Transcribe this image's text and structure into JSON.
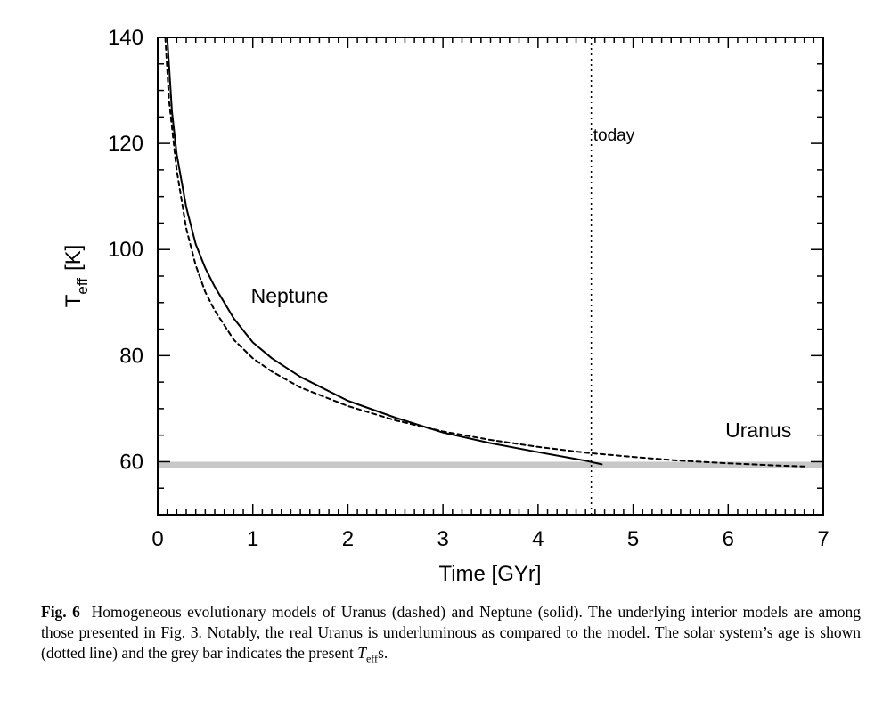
{
  "chart_data": {
    "type": "line",
    "xlabel": "Time  [GYr]",
    "ylabel_main": "T",
    "ylabel_sub": "eff",
    "ylabel_unit": "[K]",
    "xlim": [
      0,
      7
    ],
    "ylim": [
      50,
      140
    ],
    "x_ticks": [
      0,
      1,
      2,
      3,
      4,
      5,
      6,
      7
    ],
    "y_ticks": [
      60,
      80,
      100,
      120,
      140
    ],
    "x_tick_labels": [
      "0",
      "1",
      "2",
      "3",
      "4",
      "5",
      "6",
      "7"
    ],
    "y_tick_labels": [
      "60",
      "80",
      "100",
      "120",
      "140"
    ],
    "grid": false,
    "series": [
      {
        "name": "Neptune",
        "style": "solid",
        "x": [
          0.1,
          0.15,
          0.2,
          0.3,
          0.4,
          0.5,
          0.6,
          0.8,
          1.0,
          1.2,
          1.5,
          2.0,
          2.5,
          3.0,
          3.5,
          4.0,
          4.5,
          4.67
        ],
        "y": [
          140,
          126,
          118,
          108,
          101,
          96.5,
          93,
          87,
          82.5,
          79.5,
          76,
          71.5,
          68.3,
          65.5,
          63.5,
          61.8,
          60.2,
          59.5
        ]
      },
      {
        "name": "Uranus",
        "style": "dashed",
        "x": [
          0.08,
          0.12,
          0.2,
          0.3,
          0.4,
          0.5,
          0.6,
          0.8,
          1.0,
          1.2,
          1.5,
          2.0,
          2.5,
          3.0,
          3.5,
          4.0,
          4.5,
          5.0,
          5.5,
          6.0,
          6.5,
          6.8
        ],
        "y": [
          140,
          128,
          115,
          104,
          97,
          92,
          88.5,
          83,
          79.5,
          77,
          74,
          70.5,
          67.8,
          65.7,
          64.1,
          62.8,
          61.7,
          60.9,
          60.2,
          59.7,
          59.3,
          59.1
        ]
      }
    ],
    "annotations": [
      {
        "text": "Neptune",
        "x": 0.98,
        "y": 90
      },
      {
        "text": "Uranus",
        "x": 5.97,
        "y": 64.6
      },
      {
        "text": "today",
        "x": 4.58,
        "y": 120.5
      }
    ],
    "today_line": {
      "x": 4.56,
      "style": "dotted"
    },
    "present_band": {
      "y_min": 58.8,
      "y_max": 60.0,
      "color": "#c8c8c8"
    }
  },
  "caption": {
    "label": "Fig. 6",
    "text": "Homogeneous evolutionary models of Uranus (dashed) and Neptune (solid). The underlying interior models are among those presented in Fig. 3. Notably, the real Uranus is underluminous as compared to the model. The solar system’s age is shown (dotted line) and the grey bar indicates the present",
    "math_main": "T",
    "math_sub": "eff",
    "tail": "s."
  }
}
